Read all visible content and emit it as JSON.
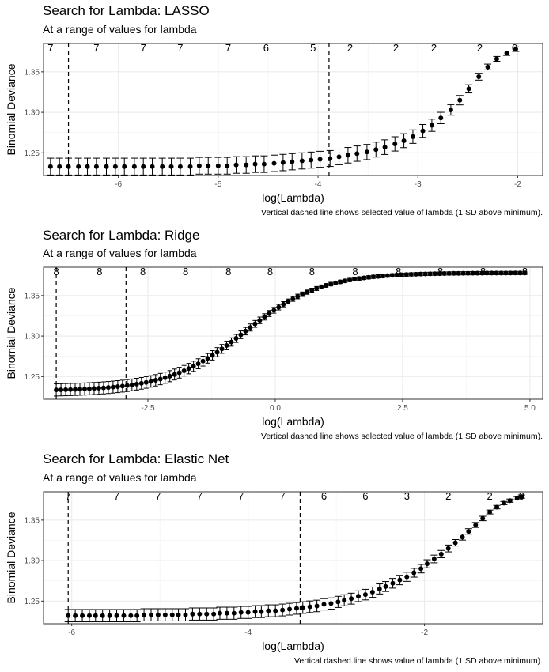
{
  "chart_data": [
    {
      "type": "scatter",
      "title": "Search for Lambda: LASSO",
      "subtitle": "At a range of values for lambda",
      "xlabel": "log(Lambda)",
      "ylabel": "Binomial Deviance",
      "caption": "Vertical dashed line shows selected value of lambda (1 SD above minimum).",
      "xlim": [
        -6.75,
        -1.75
      ],
      "ylim": [
        1.222,
        1.385
      ],
      "xticks": [
        -6,
        -5,
        -4,
        -3,
        -2
      ],
      "xtick_labels": [
        "-6",
        "-5",
        "-4",
        "-3",
        "-2"
      ],
      "yticks": [
        1.25,
        1.3,
        1.35
      ],
      "ytick_labels": [
        "1.25",
        "1.30",
        "1.35"
      ],
      "vlines": [
        -6.5,
        -3.89
      ],
      "top_counts": [
        {
          "x": -6.68,
          "label": "7"
        },
        {
          "x": -6.22,
          "label": "7"
        },
        {
          "x": -5.75,
          "label": "7"
        },
        {
          "x": -5.38,
          "label": "7"
        },
        {
          "x": -4.9,
          "label": "7"
        },
        {
          "x": -4.52,
          "label": "6"
        },
        {
          "x": -4.05,
          "label": "5"
        },
        {
          "x": -3.68,
          "label": "2"
        },
        {
          "x": -3.22,
          "label": "2"
        },
        {
          "x": -2.84,
          "label": "2"
        },
        {
          "x": -2.38,
          "label": "2"
        },
        {
          "x": -2.03,
          "label": "0"
        }
      ],
      "x": [
        -6.68,
        -6.59,
        -6.5,
        -6.4,
        -6.31,
        -6.22,
        -6.12,
        -6.03,
        -5.94,
        -5.84,
        -5.75,
        -5.66,
        -5.56,
        -5.47,
        -5.38,
        -5.28,
        -5.19,
        -5.1,
        -5.0,
        -4.91,
        -4.82,
        -4.72,
        -4.63,
        -4.54,
        -4.44,
        -4.35,
        -4.26,
        -4.16,
        -4.07,
        -3.98,
        -3.88,
        -3.79,
        -3.7,
        -3.61,
        -3.51,
        -3.42,
        -3.33,
        -3.23,
        -3.14,
        -3.05,
        -2.95,
        -2.86,
        -2.77,
        -2.67,
        -2.58,
        -2.49,
        -2.39,
        -2.3,
        -2.21,
        -2.11,
        -2.02
      ],
      "values": [
        1.233,
        1.233,
        1.233,
        1.233,
        1.233,
        1.233,
        1.233,
        1.233,
        1.233,
        1.233,
        1.233,
        1.233,
        1.233,
        1.233,
        1.233,
        1.233,
        1.234,
        1.234,
        1.234,
        1.234,
        1.235,
        1.235,
        1.236,
        1.236,
        1.237,
        1.238,
        1.239,
        1.24,
        1.241,
        1.242,
        1.243,
        1.245,
        1.247,
        1.249,
        1.251,
        1.254,
        1.257,
        1.261,
        1.265,
        1.27,
        1.277,
        1.284,
        1.293,
        1.303,
        1.315,
        1.329,
        1.344,
        1.356,
        1.366,
        1.373,
        1.378
      ],
      "error_halfwidth": 0.011
    },
    {
      "type": "scatter",
      "title": "Search for Lambda: Ridge",
      "subtitle": "At a range of values for lambda",
      "xlabel": "log(Lambda)",
      "ylabel": "Binomial Deviance",
      "caption": "Vertical dashed line shows selected value of lambda (1 SD above minimum).",
      "xlim": [
        -4.55,
        5.25
      ],
      "ylim": [
        1.222,
        1.385
      ],
      "xticks": [
        -2.5,
        0.0,
        2.5,
        5.0
      ],
      "xtick_labels": [
        "-2.5",
        "0.0",
        "2.5",
        "5.0"
      ],
      "yticks": [
        1.25,
        1.3,
        1.35
      ],
      "ytick_labels": [
        "1.25",
        "1.30",
        "1.35"
      ],
      "vlines": [
        -4.3,
        -2.93
      ],
      "top_counts": [
        {
          "x": -4.3,
          "label": "8"
        },
        {
          "x": -3.45,
          "label": "8"
        },
        {
          "x": -2.6,
          "label": "8"
        },
        {
          "x": -1.76,
          "label": "8"
        },
        {
          "x": -0.92,
          "label": "8"
        },
        {
          "x": -0.1,
          "label": "8"
        },
        {
          "x": 0.72,
          "label": "8"
        },
        {
          "x": 1.57,
          "label": "8"
        },
        {
          "x": 2.42,
          "label": "8"
        },
        {
          "x": 3.24,
          "label": "8"
        },
        {
          "x": 4.08,
          "label": "8"
        },
        {
          "x": 4.9,
          "label": "8"
        }
      ],
      "x_start": -4.3,
      "x_end": 4.9,
      "n_points": 100,
      "curve": {
        "y_low": 1.2325,
        "y_high": 1.378,
        "midpoint": -0.6,
        "scale": 0.75
      },
      "error_halfwidth": 0.008
    },
    {
      "type": "scatter",
      "title": "Search for Lambda: Elastic Net",
      "subtitle": "At a range of values for lambda",
      "xlabel": "log(Lambda)",
      "ylabel": "Binomial Deviance",
      "caption": "Vertical dashed line shows value of lambda (1 SD above minimum).",
      "xlim": [
        -6.32,
        -0.66
      ],
      "ylim": [
        1.222,
        1.385
      ],
      "xticks": [
        -6,
        -4,
        -2
      ],
      "xtick_labels": [
        "-6",
        "-4",
        "-2"
      ],
      "yticks": [
        1.25,
        1.3,
        1.35
      ],
      "ytick_labels": [
        "1.25",
        "1.30",
        "1.35"
      ],
      "vlines": [
        -6.04,
        -3.41
      ],
      "top_counts": [
        {
          "x": -6.04,
          "label": "7"
        },
        {
          "x": -5.49,
          "label": "7"
        },
        {
          "x": -5.02,
          "label": "7"
        },
        {
          "x": -4.55,
          "label": "7"
        },
        {
          "x": -4.08,
          "label": "7"
        },
        {
          "x": -3.61,
          "label": "7"
        },
        {
          "x": -3.14,
          "label": "6"
        },
        {
          "x": -2.67,
          "label": "6"
        },
        {
          "x": -2.2,
          "label": "3"
        },
        {
          "x": -1.73,
          "label": "2"
        },
        {
          "x": -1.26,
          "label": "2"
        },
        {
          "x": -0.9,
          "label": "0"
        }
      ],
      "x": [
        -6.04,
        -5.96,
        -5.88,
        -5.8,
        -5.73,
        -5.65,
        -5.57,
        -5.49,
        -5.41,
        -5.33,
        -5.26,
        -5.18,
        -5.1,
        -5.02,
        -4.94,
        -4.86,
        -4.79,
        -4.71,
        -4.63,
        -4.55,
        -4.47,
        -4.39,
        -4.32,
        -4.24,
        -4.16,
        -4.08,
        -4.0,
        -3.92,
        -3.85,
        -3.77,
        -3.69,
        -3.61,
        -3.53,
        -3.45,
        -3.38,
        -3.3,
        -3.22,
        -3.14,
        -3.06,
        -2.98,
        -2.91,
        -2.83,
        -2.75,
        -2.67,
        -2.59,
        -2.51,
        -2.44,
        -2.36,
        -2.28,
        -2.2,
        -2.12,
        -2.04,
        -1.97,
        -1.89,
        -1.81,
        -1.73,
        -1.65,
        -1.57,
        -1.5,
        -1.42,
        -1.34,
        -1.26,
        -1.18,
        -1.1,
        -1.03,
        -0.95,
        -0.9
      ],
      "values": [
        1.232,
        1.232,
        1.232,
        1.232,
        1.232,
        1.232,
        1.232,
        1.232,
        1.232,
        1.232,
        1.232,
        1.233,
        1.233,
        1.233,
        1.233,
        1.233,
        1.233,
        1.233,
        1.234,
        1.234,
        1.234,
        1.234,
        1.235,
        1.235,
        1.235,
        1.236,
        1.236,
        1.237,
        1.237,
        1.238,
        1.238,
        1.239,
        1.24,
        1.241,
        1.242,
        1.243,
        1.244,
        1.246,
        1.247,
        1.249,
        1.251,
        1.253,
        1.256,
        1.258,
        1.261,
        1.265,
        1.268,
        1.272,
        1.276,
        1.28,
        1.285,
        1.29,
        1.296,
        1.302,
        1.308,
        1.315,
        1.322,
        1.329,
        1.336,
        1.344,
        1.352,
        1.36,
        1.366,
        1.371,
        1.374,
        1.377,
        1.379
      ],
      "error_halfwidth": 0.008
    }
  ]
}
